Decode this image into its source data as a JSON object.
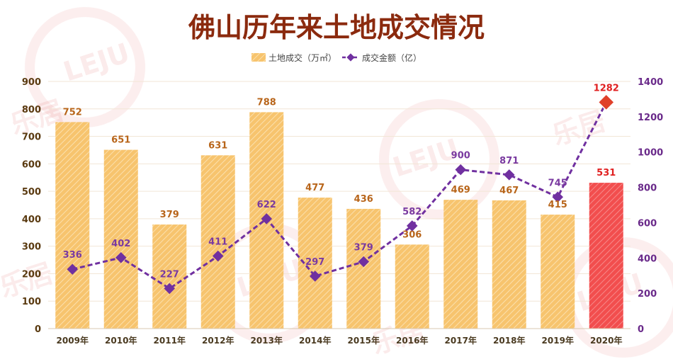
{
  "chart_data": {
    "type": "bar",
    "title": "佛山历年来土地成交情况",
    "categories": [
      "2009年",
      "2010年",
      "2011年",
      "2012年",
      "2013年",
      "2014年",
      "2015年",
      "2016年",
      "2017年",
      "2018年",
      "2019年",
      "2020年"
    ],
    "series": [
      {
        "name": "土地成交（万㎡）",
        "type": "bar",
        "axis": "left",
        "values": [
          752,
          651,
          379,
          631,
          788,
          477,
          436,
          306,
          469,
          467,
          415,
          531
        ]
      },
      {
        "name": "成交金额（亿）",
        "type": "line",
        "axis": "right",
        "values": [
          336,
          402,
          227,
          411,
          622,
          297,
          379,
          582,
          900,
          871,
          745,
          1282
        ]
      }
    ],
    "highlight_category": "2020年",
    "y_left": {
      "min": 0,
      "max": 900,
      "ticks": [
        0,
        100,
        200,
        300,
        400,
        500,
        600,
        700,
        800,
        900
      ]
    },
    "y_right": {
      "min": 0,
      "max": 1400,
      "ticks": [
        0,
        200,
        400,
        600,
        800,
        1000,
        1200,
        1400
      ]
    },
    "legend_position": "top",
    "grid": true,
    "colors": {
      "bar": "#f5c26b",
      "bar_highlight": "#f25a5a",
      "line": "#7030a0",
      "line_highlight": "#e0402a",
      "title": "#8b2a0e"
    }
  },
  "watermark": {
    "brand": "LEJU",
    "text": "乐居",
    "icon": "leju-watermark-logo"
  }
}
